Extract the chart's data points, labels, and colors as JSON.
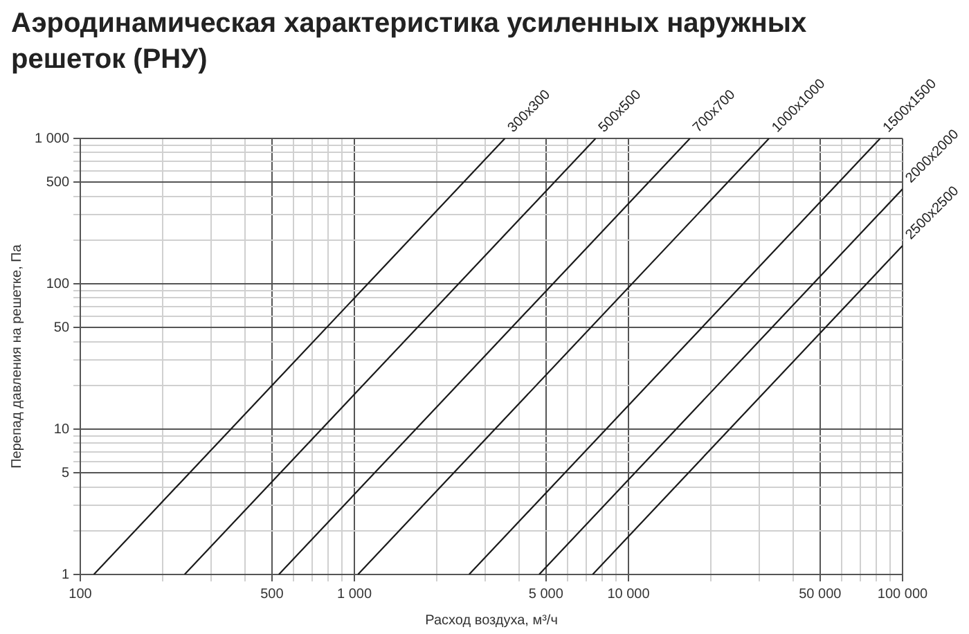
{
  "chart_data": {
    "type": "line",
    "title": "Аэродинамическая характеристика усиленных наружных решеток (РНУ)",
    "xlabel": "Расход воздуха, м³/ч",
    "ylabel": "Перепад давления на решетке, Па",
    "log": "xy",
    "grid": true,
    "legend": false,
    "marker": "none",
    "line_style": "solid",
    "xlim": [
      100,
      100000
    ],
    "ylim": [
      1,
      1000
    ],
    "xticks": [
      100,
      {
        "value": 200,
        "label": null
      },
      {
        "value": 300,
        "label": null
      },
      {
        "value": 400,
        "label": null
      },
      500,
      {
        "value": 600,
        "label": null
      },
      {
        "value": 700,
        "label": null
      },
      {
        "value": 800,
        "label": null
      },
      {
        "value": 900,
        "label": null
      },
      {
        "value": 1000,
        "label": "1 000"
      },
      {
        "value": 2000,
        "label": null
      },
      {
        "value": 3000,
        "label": null
      },
      {
        "value": 4000,
        "label": null
      },
      {
        "value": 5000,
        "label": "5 000"
      },
      {
        "value": 6000,
        "label": null
      },
      {
        "value": 7000,
        "label": null
      },
      {
        "value": 8000,
        "label": null
      },
      {
        "value": 9000,
        "label": null
      },
      {
        "value": 10000,
        "label": "10 000"
      },
      {
        "value": 20000,
        "label": null
      },
      {
        "value": 30000,
        "label": null
      },
      {
        "value": 40000,
        "label": null
      },
      {
        "value": 50000,
        "label": "50 000"
      },
      {
        "value": 60000,
        "label": null
      },
      {
        "value": 70000,
        "label": null
      },
      {
        "value": 80000,
        "label": null
      },
      {
        "value": 90000,
        "label": null
      },
      {
        "value": 100000,
        "label": "100 000"
      }
    ],
    "yticks": [
      1,
      {
        "value": 2,
        "label": null
      },
      {
        "value": 3,
        "label": null
      },
      {
        "value": 4,
        "label": null
      },
      5,
      {
        "value": 6,
        "label": null
      },
      {
        "value": 7,
        "label": null
      },
      {
        "value": 8,
        "label": null
      },
      {
        "value": 9,
        "label": null
      },
      10,
      {
        "value": 20,
        "label": null
      },
      {
        "value": 30,
        "label": null
      },
      {
        "value": 40,
        "label": null
      },
      50,
      {
        "value": 60,
        "label": null
      },
      {
        "value": 70,
        "label": null
      },
      {
        "value": 80,
        "label": null
      },
      {
        "value": 90,
        "label": null
      },
      100,
      {
        "value": 200,
        "label": null
      },
      {
        "value": 300,
        "label": null
      },
      {
        "value": 400,
        "label": null
      },
      500,
      {
        "value": 600,
        "label": null
      },
      {
        "value": 700,
        "label": null
      },
      {
        "value": 800,
        "label": null
      },
      {
        "value": 900,
        "label": null
      },
      {
        "value": 1000,
        "label": "1 000"
      }
    ],
    "series": [
      {
        "name": "300x300",
        "color": "#1a1a1a",
        "x": [
          112,
          3540
        ],
        "values": [
          1,
          1000
        ]
      },
      {
        "name": "500x500",
        "color": "#1a1a1a",
        "x": [
          240,
          7590
        ],
        "values": [
          1,
          1000
        ]
      },
      {
        "name": "700x700",
        "color": "#1a1a1a",
        "x": [
          530,
          16760
        ],
        "values": [
          1,
          1000
        ]
      },
      {
        "name": "1000x1000",
        "color": "#1a1a1a",
        "x": [
          1030,
          32570
        ],
        "values": [
          1,
          1000
        ]
      },
      {
        "name": "1500x1500",
        "color": "#1a1a1a",
        "x": [
          2620,
          82850
        ],
        "values": [
          1,
          1000
        ]
      },
      {
        "name": "2000x2000",
        "color": "#1a1a1a",
        "x": [
          4720,
          100000
        ],
        "values": [
          1,
          449
        ]
      },
      {
        "name": "2500x2500",
        "color": "#1a1a1a",
        "x": [
          7400,
          100000
        ],
        "values": [
          1,
          183
        ]
      }
    ]
  }
}
